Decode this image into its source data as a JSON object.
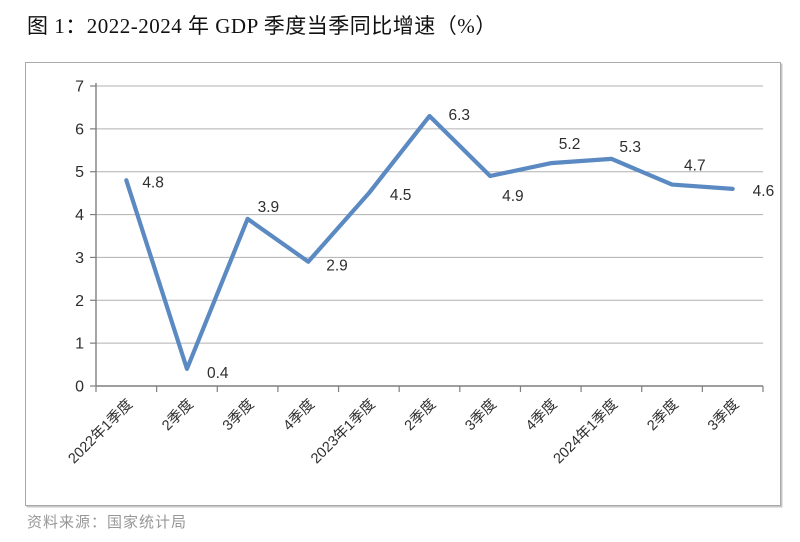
{
  "page": {
    "title": "图 1：2022-2024 年 GDP 季度当季同比增速（%）",
    "source": "资料来源：国家统计局"
  },
  "chart_data": {
    "type": "line",
    "title": "2022-2024 年 GDP 季度当季同比增速（%）",
    "categories": [
      "2022年1季度",
      "2季度",
      "3季度",
      "4季度",
      "2023年1季度",
      "2季度",
      "3季度",
      "4季度",
      "2024年1季度",
      "2季度",
      "3季度"
    ],
    "values": [
      4.8,
      0.4,
      3.9,
      2.9,
      4.5,
      6.3,
      4.9,
      5.2,
      5.3,
      4.7,
      4.6
    ],
    "data_labels": [
      "4.8",
      "0.4",
      "3.9",
      "2.9",
      "4.5",
      "6.3",
      "4.9",
      "5.2",
      "5.3",
      "4.7",
      "4.6"
    ],
    "ylim": [
      0,
      7
    ],
    "ytick_step": 1,
    "ytick_labels": [
      "0",
      "1",
      "2",
      "3",
      "4",
      "5",
      "6",
      "7"
    ],
    "grid": true,
    "legend": false,
    "xlabel": "",
    "ylabel": "",
    "colors": {
      "line": "#5b89c2",
      "data_label": "#2e2e2e",
      "axis_label": "#2e2e2e",
      "gridline": "#b0b0b0",
      "axis": "#7f7f7f"
    }
  }
}
